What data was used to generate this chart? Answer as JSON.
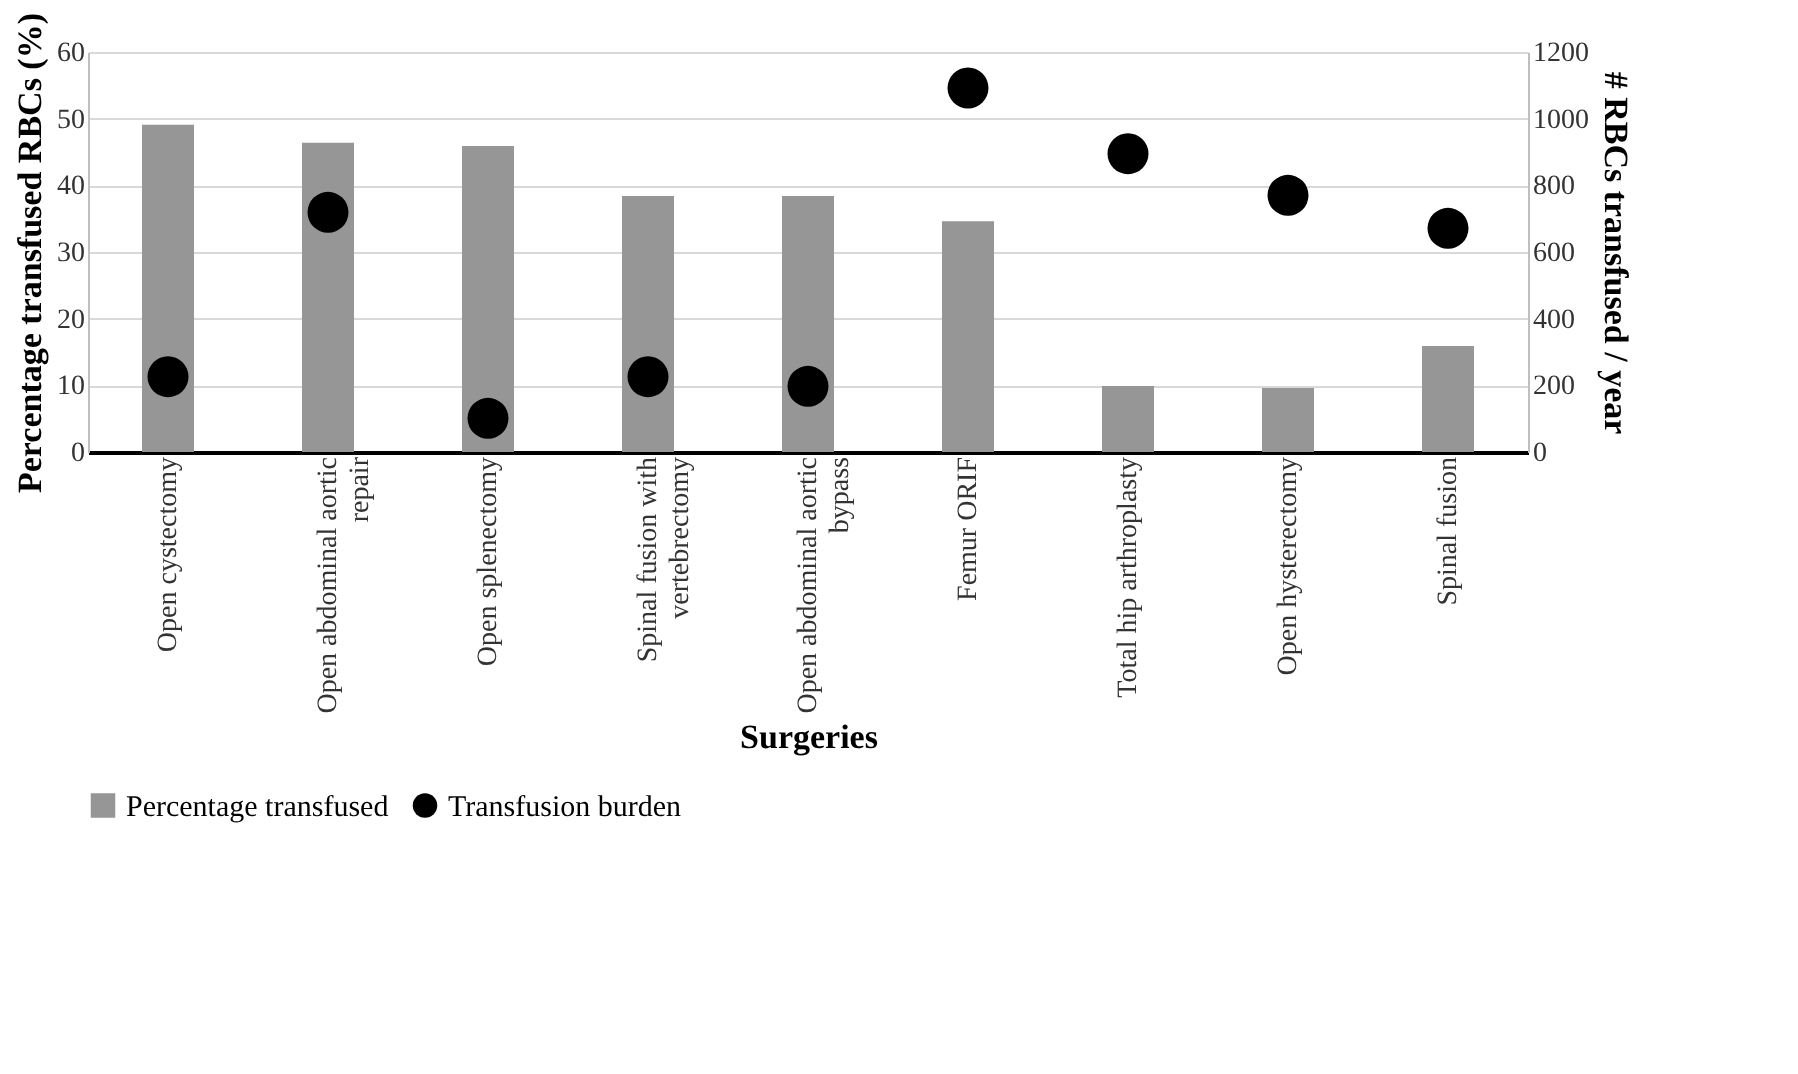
{
  "chart_data": {
    "type": "bar",
    "xlabel": "Surgeries",
    "ylabel": "Percentage transfused RBCs (%)",
    "y2label": "# RBCs transfused / year",
    "categories": [
      "Open cystectomy",
      "Open abdominal aortic repair",
      "Open splenectomy",
      "Spinal fusion with vertebrectomy",
      "Open abdominal aortic bypass",
      "Femur ORIF",
      "Total hip arthroplasty",
      "Open hysterectomy",
      "Spinal fusion"
    ],
    "series": [
      {
        "name": "Percentage transfused",
        "color": "#969696",
        "values": [
          49.1,
          46.4,
          45.9,
          38.4,
          38.4,
          34.6,
          9.9,
          9.6,
          15.9
        ]
      },
      {
        "name": "Transfusion burden",
        "color": "#000000",
        "type": "scatter",
        "axis": "y2",
        "marker": "circle",
        "values": [
          226,
          719,
          101,
          226,
          197,
          1092,
          895,
          770,
          671
        ]
      }
    ],
    "ylim": [
      0,
      60
    ],
    "yticks": [
      0,
      10,
      20,
      30,
      40,
      50,
      60
    ],
    "y2lim": [
      0,
      1200
    ],
    "y2ticks": [
      0,
      200,
      400,
      600,
      800,
      1000,
      1200
    ],
    "grid": "y",
    "legend": "bottom"
  }
}
